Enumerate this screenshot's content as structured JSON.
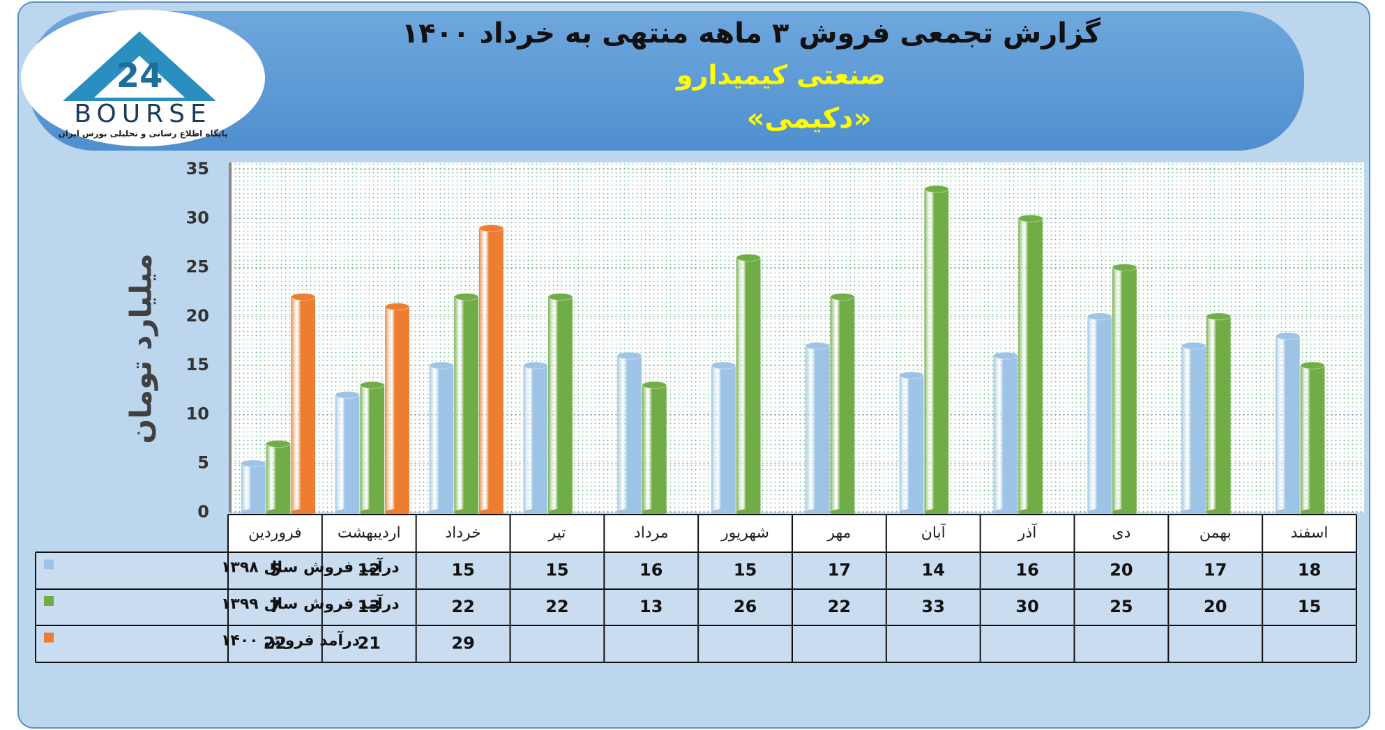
{
  "logo": {
    "name": "BOURSE",
    "number": "24",
    "tagline": "پایگاه اطلاع رسانی و تحلیلی بورس ایران"
  },
  "chart_data": {
    "type": "bar",
    "title": "گزارش تجمعی فروش ۳ ماهه منتهی به خرداد ۱۴۰۰",
    "subtitle": "صنعتی کیمیدارو",
    "symbol": "«دکیمی»",
    "y_label": "میلیارد تومان",
    "categories": [
      "فروردین",
      "اردیبهشت",
      "خرداد",
      "تیر",
      "مرداد",
      "شهریور",
      "مهر",
      "آبان",
      "آذر",
      "دی",
      "بهمن",
      "اسفند"
    ],
    "series": [
      {
        "name": "درآمد فروش سال ۱۳۹۸",
        "color": "#9dc3e6",
        "values": [
          5,
          12,
          15,
          15,
          16,
          15,
          17,
          14,
          16,
          20,
          17,
          18
        ]
      },
      {
        "name": "درآمد فروش سال ۱۳۹۹",
        "color": "#70ad47",
        "values": [
          7,
          13,
          22,
          22,
          13,
          26,
          22,
          33,
          30,
          25,
          20,
          15
        ]
      },
      {
        "name": "درآمد فروش ۱۴۰۰",
        "color": "#ed7d31",
        "values": [
          22,
          21,
          29,
          null,
          null,
          null,
          null,
          null,
          null,
          null,
          null,
          null
        ]
      }
    ],
    "ylim": [
      0,
      35
    ],
    "yticks": [
      0,
      5,
      10,
      15,
      20,
      25,
      30,
      35
    ],
    "grid": true
  }
}
